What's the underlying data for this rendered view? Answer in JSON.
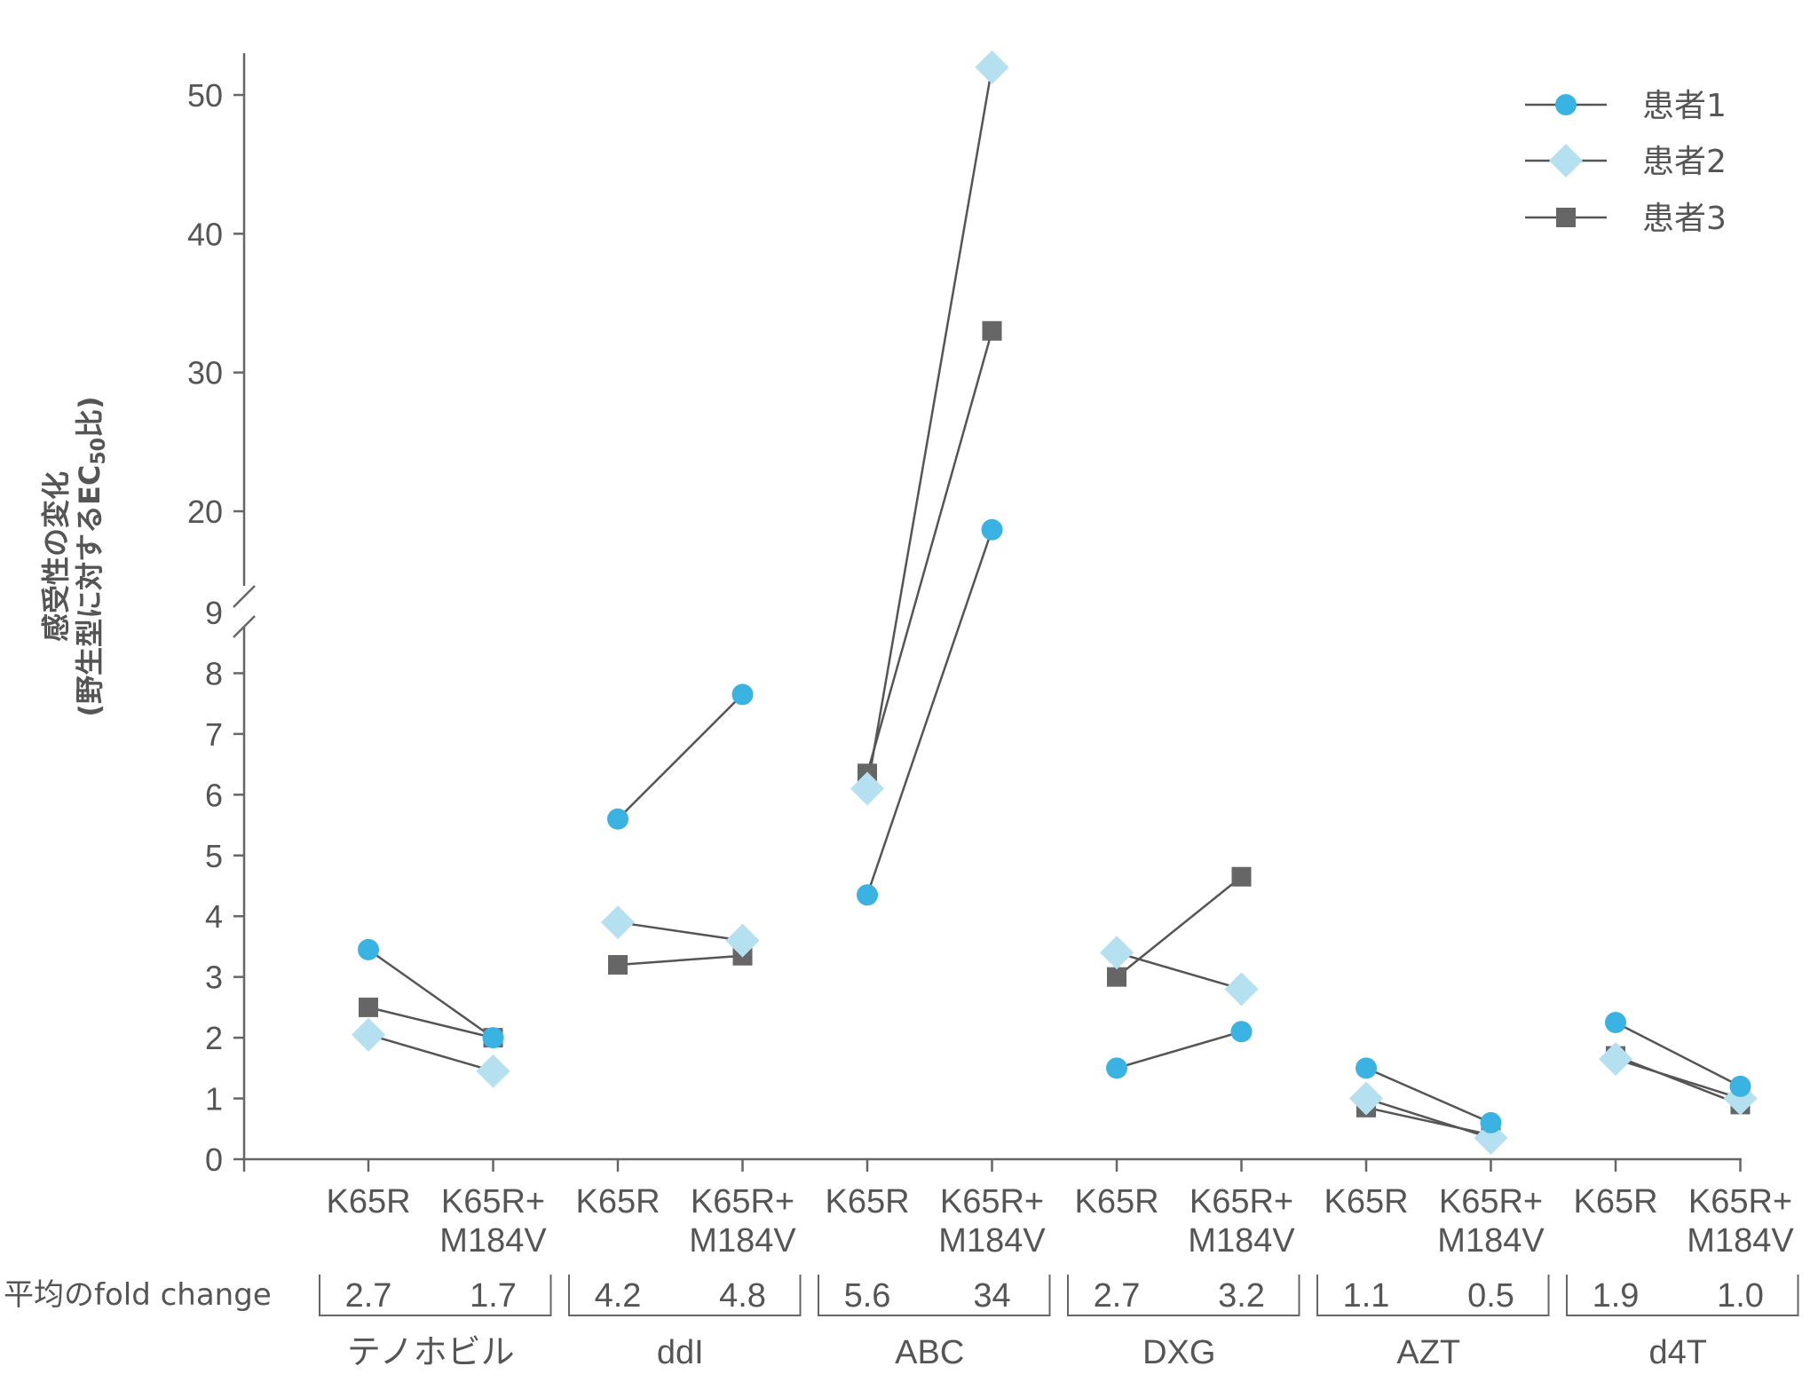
{
  "chart_data": {
    "type": "line",
    "ylabel_line1": "感受性の変化",
    "ylabel_line2_pre": "(野生型に対するEC",
    "ylabel_sub": "50",
    "ylabel_line2_post": "比)",
    "y_axis": {
      "broken": true,
      "lower_range": [
        0,
        9
      ],
      "upper_range": [
        9,
        50
      ],
      "lower_ticks": [
        0,
        1,
        2,
        3,
        4,
        5,
        6,
        7,
        8,
        9
      ],
      "upper_ticks": [
        20,
        30,
        40,
        50
      ]
    },
    "categories": [
      [
        "K65R"
      ],
      [
        "K65R+",
        "M184V"
      ],
      [
        "K65R"
      ],
      [
        "K65R+",
        "M184V"
      ],
      [
        "K65R"
      ],
      [
        "K65R+",
        "M184V"
      ],
      [
        "K65R"
      ],
      [
        "K65R+",
        "M184V"
      ],
      [
        "K65R"
      ],
      [
        "K65R+",
        "M184V"
      ],
      [
        "K65R"
      ],
      [
        "K65R+",
        "M184V"
      ]
    ],
    "fold_change_row_label": "平均のfold change",
    "groups": [
      {
        "drug": "テノホビル",
        "fold_change": [
          "2.7",
          "1.7"
        ]
      },
      {
        "drug": "ddI",
        "fold_change": [
          "4.2",
          "4.8"
        ]
      },
      {
        "drug": "ABC",
        "fold_change": [
          "5.6",
          "34"
        ]
      },
      {
        "drug": "DXG",
        "fold_change": [
          "2.7",
          "3.2"
        ]
      },
      {
        "drug": "AZT",
        "fold_change": [
          "1.1",
          "0.5"
        ]
      },
      {
        "drug": "d4T",
        "fold_change": [
          "1.9",
          "1.0"
        ]
      }
    ],
    "series": [
      {
        "name": "患者1",
        "marker": "circle",
        "color": "#3ab3e3",
        "values": [
          [
            3.45,
            2.0
          ],
          [
            5.6,
            7.65
          ],
          [
            4.35,
            18
          ],
          [
            1.5,
            2.1
          ],
          [
            1.5,
            0.6
          ],
          [
            2.25,
            1.2
          ]
        ]
      },
      {
        "name": "患者2",
        "marker": "diamond",
        "color": "#b4e0f0",
        "values": [
          [
            2.05,
            1.45
          ],
          [
            3.9,
            3.6
          ],
          [
            6.1,
            52
          ],
          [
            3.4,
            2.8
          ],
          [
            1.0,
            0.35
          ],
          [
            1.65,
            1.0
          ]
        ]
      },
      {
        "name": "患者3",
        "marker": "square",
        "color": "#666666",
        "values": [
          [
            2.5,
            2.0
          ],
          [
            3.2,
            3.35
          ],
          [
            6.35,
            33
          ],
          [
            3.0,
            4.65
          ],
          [
            0.85,
            0.4
          ],
          [
            1.7,
            0.9
          ]
        ]
      }
    ],
    "line_color": "#555555",
    "legend_position": "top-right",
    "grid": false
  }
}
